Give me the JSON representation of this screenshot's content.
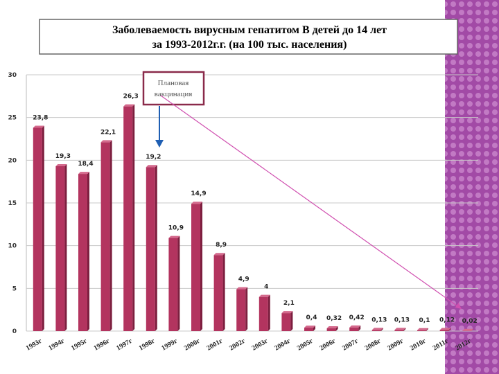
{
  "chart_data": {
    "type": "bar",
    "title": "Заболеваемость вирусным гепатитом В детей до 14 лет",
    "subtitle": "за 1993-2012г.г. (на 100 тыс. населения)",
    "annotation": "Плановая вакцинация",
    "categories": [
      "1993г",
      "1994г",
      "1995г",
      "1996г",
      "1997г",
      "1998г",
      "1999г",
      "2000г",
      "2001г",
      "2002г",
      "2003г",
      "2004г",
      "2005г",
      "2006г",
      "2007г",
      "2008г",
      "2009г",
      "2010г",
      "2011г",
      "2012г"
    ],
    "values": [
      23.8,
      19.3,
      18.4,
      22.1,
      26.3,
      19.2,
      10.9,
      14.9,
      8.9,
      4.9,
      4,
      2.1,
      0.4,
      0.32,
      0.42,
      0.13,
      0.13,
      0.1,
      0.12,
      0.02
    ],
    "value_labels": [
      "23,8",
      "19,3",
      "18,4",
      "22,1",
      "26,3",
      "19,2",
      "10,9",
      "14,9",
      "8,9",
      "4,9",
      "4",
      "2,1",
      "0,4",
      "0,32",
      "0,42",
      "0,13",
      "0,13",
      "0,1",
      "0,12",
      "0,02"
    ],
    "color": "#b3345f",
    "ylim": [
      0,
      30
    ],
    "yticks": [
      0,
      5,
      10,
      15,
      20,
      25,
      30
    ],
    "grid": true
  }
}
